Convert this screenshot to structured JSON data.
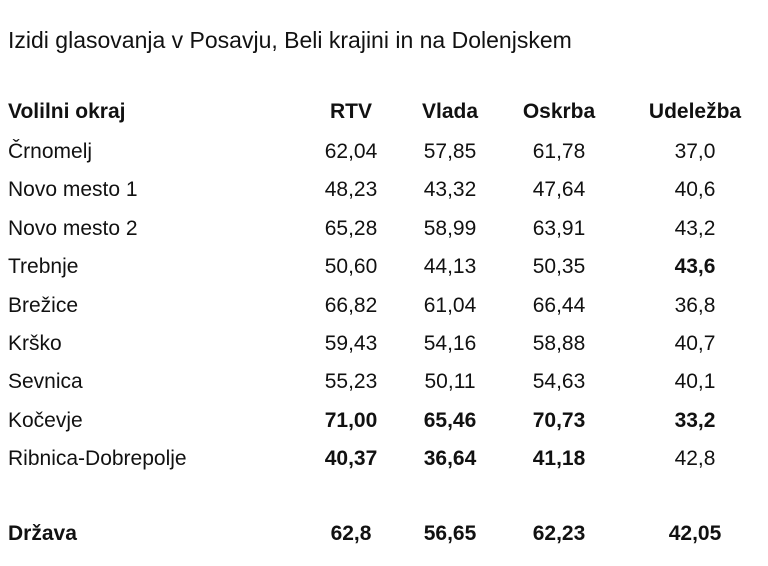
{
  "title": "Izidi glasovanja v Posavju, Beli krajini in na Dolenjskem",
  "table": {
    "header": [
      "Volilni okraj",
      "RTV",
      "Vlada",
      "Oskrba",
      "Udeležba"
    ],
    "rows": [
      [
        "Črnomelj",
        "62,04",
        "57,85",
        "61,78",
        "37,0"
      ],
      [
        "Novo mesto 1",
        "48,23",
        "43,32",
        "47,64",
        "40,6"
      ],
      [
        "Novo mesto 2",
        "65,28",
        "58,99",
        "63,91",
        "43,2"
      ],
      [
        "Trebnje",
        "50,60",
        "44,13",
        "50,35",
        "43,6"
      ],
      [
        "Brežice",
        "66,82",
        "61,04",
        "66,44",
        "36,8"
      ],
      [
        "Krško",
        "59,43",
        "54,16",
        "58,88",
        "40,7"
      ],
      [
        "Sevnica",
        "55,23",
        "50,11",
        "54,63",
        "40,1"
      ],
      [
        "Kočevje",
        "71,00",
        "65,46",
        "70,73",
        "33,2"
      ],
      [
        "Ribnica-Dobrepolje",
        "40,37",
        "36,64",
        "41,18",
        "42,8"
      ]
    ],
    "total": [
      "Država",
      "62,8",
      "56,65",
      "62,23",
      "42,05"
    ]
  }
}
